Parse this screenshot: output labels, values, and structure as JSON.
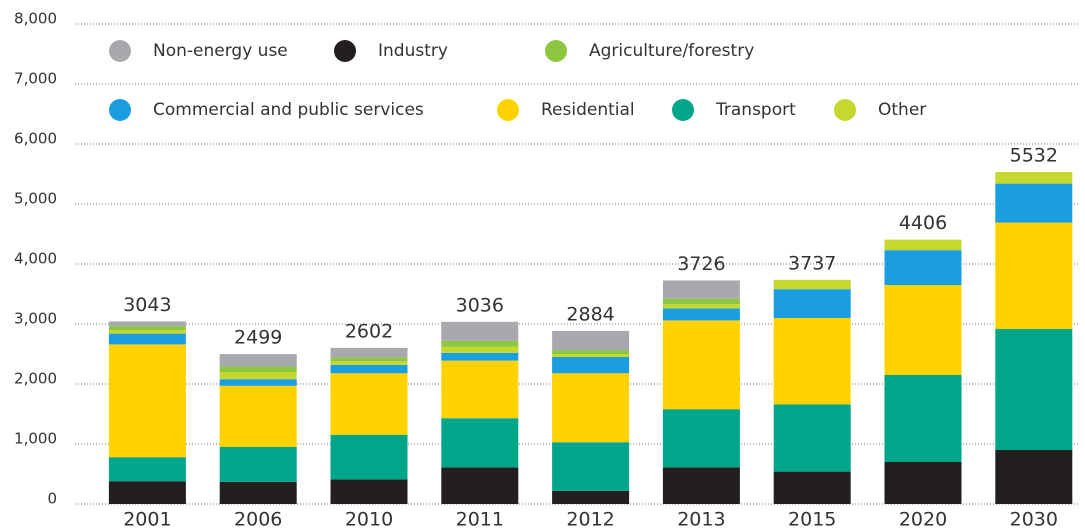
{
  "chart_data": {
    "type": "stacked_bar",
    "categories": [
      "2001",
      "2006",
      "2010",
      "2011",
      "2012",
      "2013",
      "2015",
      "2020",
      "2030"
    ],
    "series": [
      {
        "name": "Industry",
        "color": "#231f20",
        "values": [
          380,
          370,
          410,
          610,
          220,
          610,
          540,
          700,
          900
        ]
      },
      {
        "name": "Transport",
        "color": "#00a68a",
        "values": [
          400,
          580,
          740,
          820,
          810,
          970,
          1120,
          1450,
          2020
        ]
      },
      {
        "name": "Residential",
        "color": "#ffd200",
        "values": [
          1880,
          1020,
          1030,
          960,
          1150,
          1480,
          1440,
          1500,
          1770
        ]
      },
      {
        "name": "Commercial and public services",
        "color": "#1a9ee0",
        "values": [
          180,
          110,
          140,
          130,
          270,
          200,
          480,
          580,
          650
        ]
      },
      {
        "name": "Other",
        "color": "#c4d82e",
        "values": [
          60,
          120,
          60,
          100,
          50,
          70,
          157,
          176,
          192
        ]
      },
      {
        "name": "Agriculture/forestry",
        "color": "#8dc63f",
        "values": [
          60,
          90,
          60,
          100,
          60,
          90,
          0,
          0,
          0
        ]
      },
      {
        "name": "Non-energy use",
        "color": "#a7a9ac",
        "values": [
          83,
          209,
          162,
          316,
          324,
          306,
          0,
          0,
          0
        ]
      }
    ],
    "totals": [
      3043,
      2499,
      2602,
      3036,
      2884,
      3726,
      3737,
      4406,
      5532
    ],
    "ylim": [
      0,
      8000
    ],
    "yticks": [
      0,
      {
        "value": 1000,
        "label": "1,000"
      },
      {
        "value": 2000,
        "label": "2,000"
      },
      {
        "value": 3000,
        "label": "3,000"
      },
      {
        "value": 4000,
        "label": "4,000"
      },
      {
        "value": 5000,
        "label": "5,000"
      },
      {
        "value": 6000,
        "label": "6,000"
      },
      {
        "value": 7000,
        "label": "7,000"
      },
      {
        "value": 8000,
        "label": "8,000"
      }
    ],
    "grid": true
  }
}
